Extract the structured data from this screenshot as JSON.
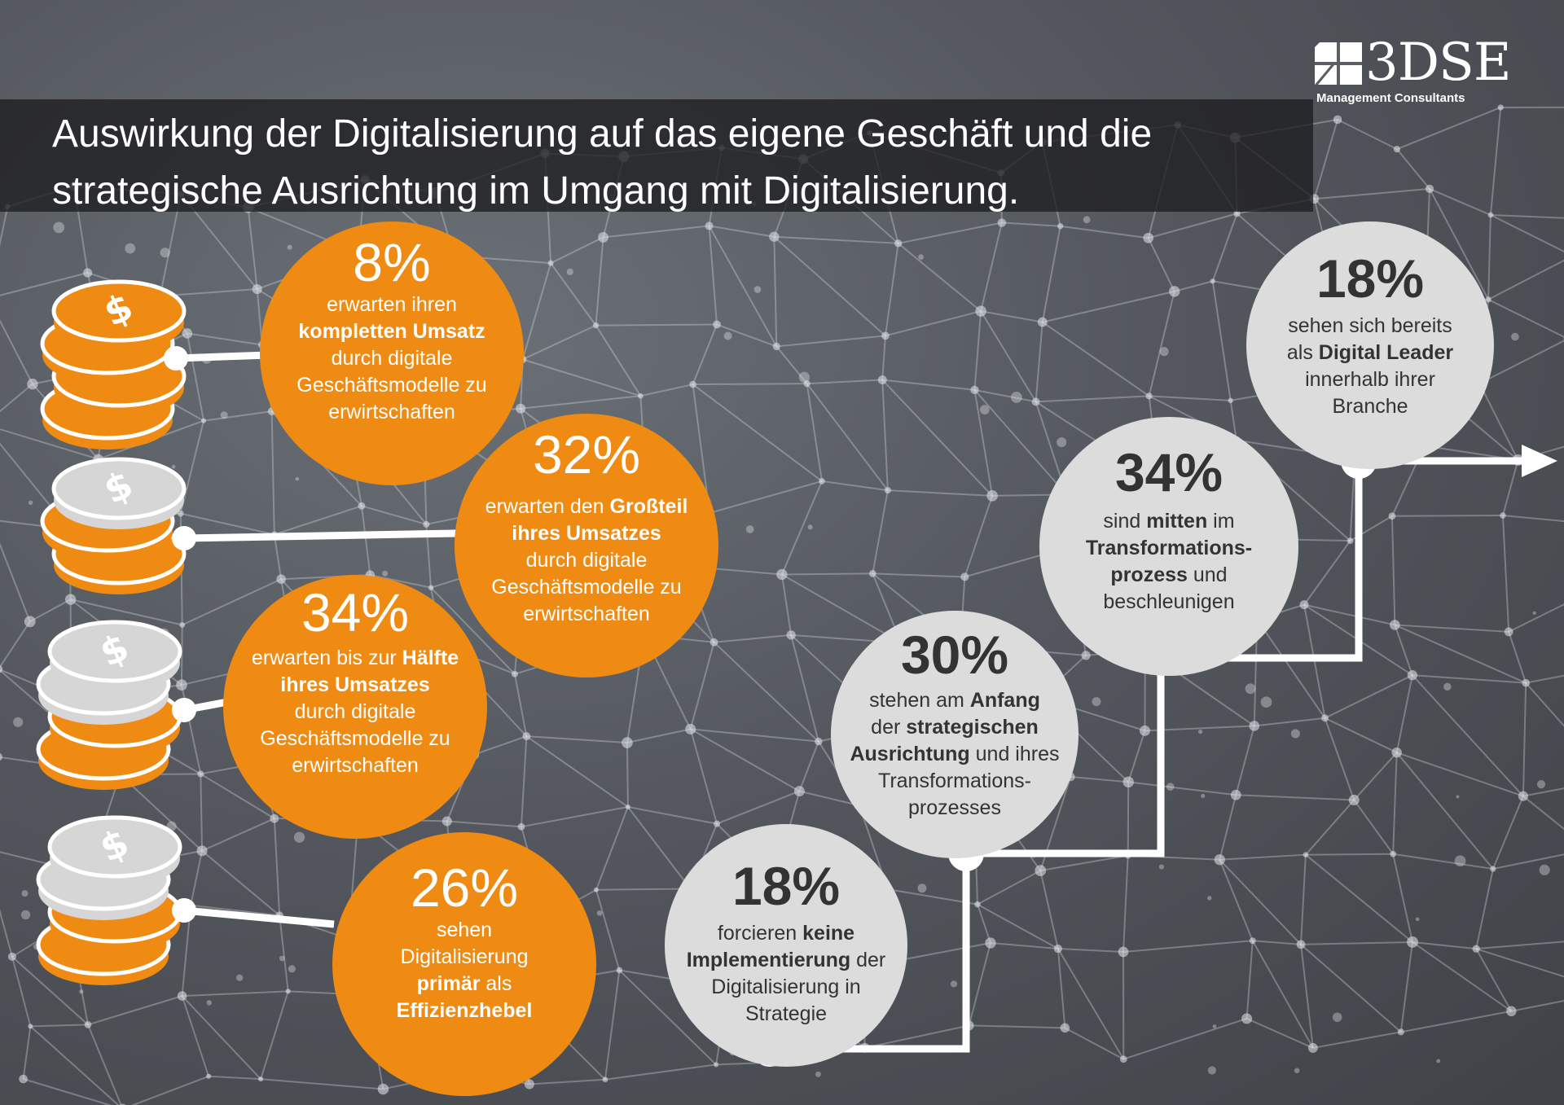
{
  "title": {
    "line1": "Auswirkung der Digitalisierung auf das eigene Geschäft und die",
    "line2": "strategische Ausrichtung im Umgang mit Digitalisierung."
  },
  "logo": {
    "name": "3DSE",
    "subtitle": "Management Consultants"
  },
  "colors": {
    "accent_orange": "#ef8b12",
    "circle_grey": "#dcdcdc",
    "coin_silver": "#d6d6d6",
    "background": "#55595f"
  },
  "revenue_stats": [
    {
      "percent": "8%",
      "parts": [
        [
          "erwarten ihren",
          false
        ],
        [
          "kompletten Umsatz",
          true
        ],
        [
          "durch digitale",
          false
        ],
        [
          "Geschäftsmodelle zu",
          false
        ],
        [
          "erwirtschaften",
          false
        ]
      ]
    },
    {
      "percent": "32%",
      "parts": [
        [
          "erwarten den ",
          false
        ],
        [
          "Großteil",
          true
        ],
        [
          "ihres Umsatzes",
          true
        ],
        [
          "durch digitale",
          false
        ],
        [
          "Geschäftsmodelle zu",
          false
        ],
        [
          "erwirtschaften",
          false
        ]
      ]
    },
    {
      "percent": "34%",
      "parts": [
        [
          "erwarten bis zur ",
          false
        ],
        [
          "Hälfte",
          true
        ],
        [
          "ihres Umsatzes",
          true
        ],
        [
          "durch digitale",
          false
        ],
        [
          "Geschäftsmodelle zu",
          false
        ],
        [
          "erwirtschaften",
          false
        ]
      ]
    },
    {
      "percent": "26%",
      "parts": [
        [
          "sehen",
          false
        ],
        [
          "Digitalisierung",
          false
        ],
        [
          "primär",
          true
        ],
        [
          " als",
          false
        ],
        [
          "Effizienzhebel",
          true
        ]
      ]
    }
  ],
  "transformation_stats": [
    {
      "percent": "18%",
      "parts": [
        [
          "forcieren ",
          false
        ],
        [
          "keine",
          true
        ],
        [
          "Implementierung",
          true
        ],
        [
          " der",
          false
        ],
        [
          "Digitalisierung in",
          false
        ],
        [
          "Strategie",
          false
        ]
      ]
    },
    {
      "percent": "30%",
      "parts": [
        [
          "stehen am ",
          false
        ],
        [
          "Anfang",
          true
        ],
        [
          "der ",
          false
        ],
        [
          "strategischen",
          true
        ],
        [
          "Ausrichtung",
          true
        ],
        [
          " und ihres",
          false
        ],
        [
          "Transformations-",
          false
        ],
        [
          "prozesses",
          false
        ]
      ]
    },
    {
      "percent": "34%",
      "parts": [
        [
          "sind ",
          false
        ],
        [
          "mitten",
          true
        ],
        [
          " im",
          false
        ],
        [
          "Transformations-",
          true
        ],
        [
          "prozess",
          true
        ],
        [
          " und",
          false
        ],
        [
          "beschleunigen",
          false
        ]
      ]
    },
    {
      "percent": "18%",
      "parts": [
        [
          "sehen sich bereits",
          false
        ],
        [
          "als ",
          false
        ],
        [
          "Digital Leader",
          true
        ],
        [
          "innerhalb ihrer",
          false
        ],
        [
          "Branche",
          false
        ]
      ]
    }
  ]
}
